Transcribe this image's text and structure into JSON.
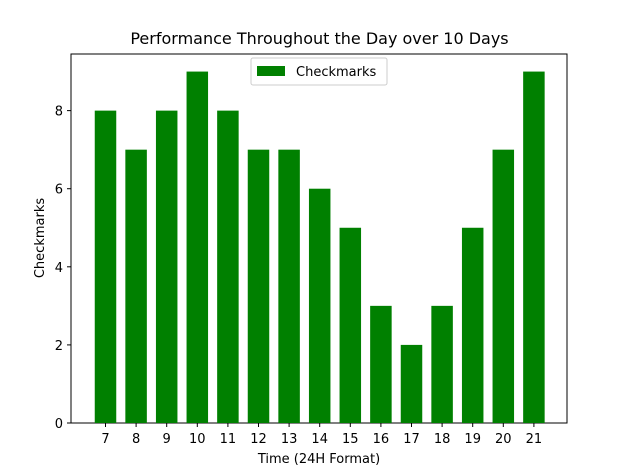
{
  "chart_data": {
    "type": "bar",
    "title": "Performance Throughout the Day over 10 Days",
    "xlabel": "Time (24H Format)",
    "ylabel": "Checkmarks",
    "categories": [
      "7",
      "8",
      "9",
      "10",
      "11",
      "12",
      "13",
      "14",
      "15",
      "16",
      "17",
      "18",
      "19",
      "20",
      "21"
    ],
    "series": [
      {
        "name": "Checkmarks",
        "color": "#008000",
        "values": [
          8,
          7,
          8,
          9,
          8,
          7,
          7,
          6,
          5,
          3,
          2,
          3,
          5,
          7,
          9
        ]
      }
    ],
    "ylim": [
      0,
      9.45
    ],
    "yticks": [
      "0",
      "2",
      "4",
      "6",
      "8"
    ],
    "grid": false,
    "legend_position": "upper center"
  }
}
